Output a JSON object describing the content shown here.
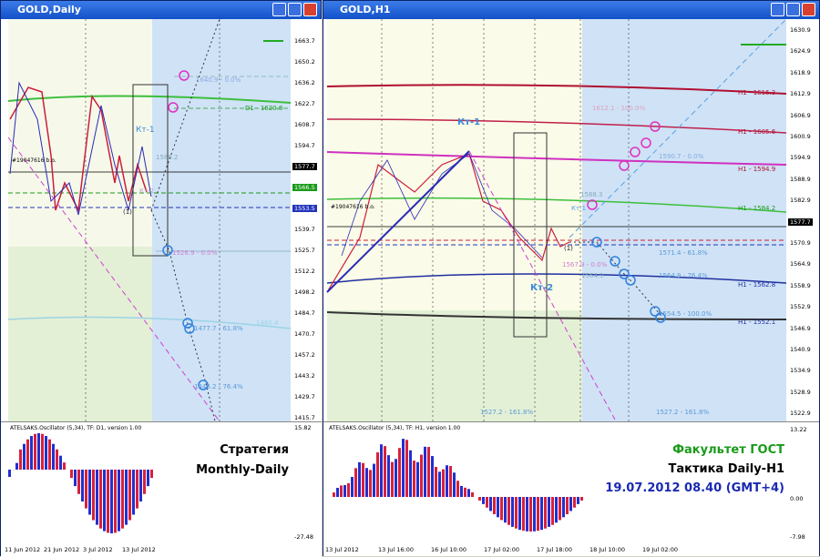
{
  "left_window": {
    "title": "GOLD,Daily",
    "price_axis": [
      "1663.7",
      "1650.2",
      "1636.2",
      "1622.7",
      "1608.7",
      "1594.7",
      "1577.7",
      "1566.5",
      "1553.5",
      "1539.7",
      "1525.7",
      "1512.2",
      "1498.2",
      "1484.7",
      "1470.7",
      "1457.2",
      "1443.2",
      "1429.7",
      "1415.7"
    ],
    "annotations": [
      "1640.9 - 0.0%",
      "D1 - 1620.8",
      "Кт-1",
      "1580.2",
      "#19047616 b.o.",
      "Кт-2",
      "(1)",
      "1526.9 - 0.0%",
      "1477.7 - 61.8%",
      "1443.2 - 76.4%",
      "1480.4"
    ],
    "oscillator": {
      "title": "ATELSAKS.Oscillator (5,34), TF: D1, version 1.00",
      "axis": [
        "15.82",
        "-27.48"
      ],
      "caption": [
        "Стратегия",
        "Monthly-Daily"
      ]
    },
    "dates": [
      "11 Jun 2012",
      "21 Jun 2012",
      "3 Jul 2012",
      "13 Jul 2012"
    ]
  },
  "right_window": {
    "title": "GOLD,H1",
    "price_axis": [
      "1630.9",
      "1624.9",
      "1618.9",
      "1612.9",
      "1606.9",
      "1600.9",
      "1594.9",
      "1588.9",
      "1582.9",
      "1577.7",
      "1570.9",
      "1564.9",
      "1558.9",
      "1552.9",
      "1546.9",
      "1540.9",
      "1534.9",
      "1528.9",
      "1522.9"
    ],
    "annotations": [
      "H1 - 1616.3",
      "1612.1 - 100.0%",
      "H1 - 1605.6",
      "1590.7 - 0.0%",
      "H1 - 1594.9",
      "Кт-1",
      "1588.3",
      "#19047616 b.o.",
      "H1 - 1584.2",
      "1571.4 - 61.8%",
      "1564.9",
      "1564.9 - 76.4%",
      "H1 - 1562.8",
      "Кт-2",
      "1554.5 - 100.0%",
      "H1 - 1552.1",
      "1527.2 - 161.8%",
      "1527.2 - 161.8%",
      "(1)",
      "Кт-1",
      "1567.9 - 0.0%"
    ],
    "oscillator": {
      "title": "ATELSAKS.Oscillator (5,34), TF: H1, version 1.00",
      "axis": [
        "13.22",
        "0.00",
        "-7.98"
      ],
      "caption": [
        "Факультет ГОСТ",
        "Тактика Daily-H1",
        "19.07.2012  08.40 (GMT+4)"
      ]
    },
    "dates": [
      "13 Jul 2012",
      "13 Jul 16:00",
      "16 Jul 10:00",
      "17 Jul 02:00",
      "17 Jul 18:00",
      "18 Jul 10:00",
      "19 Jul 02:00"
    ]
  }
}
